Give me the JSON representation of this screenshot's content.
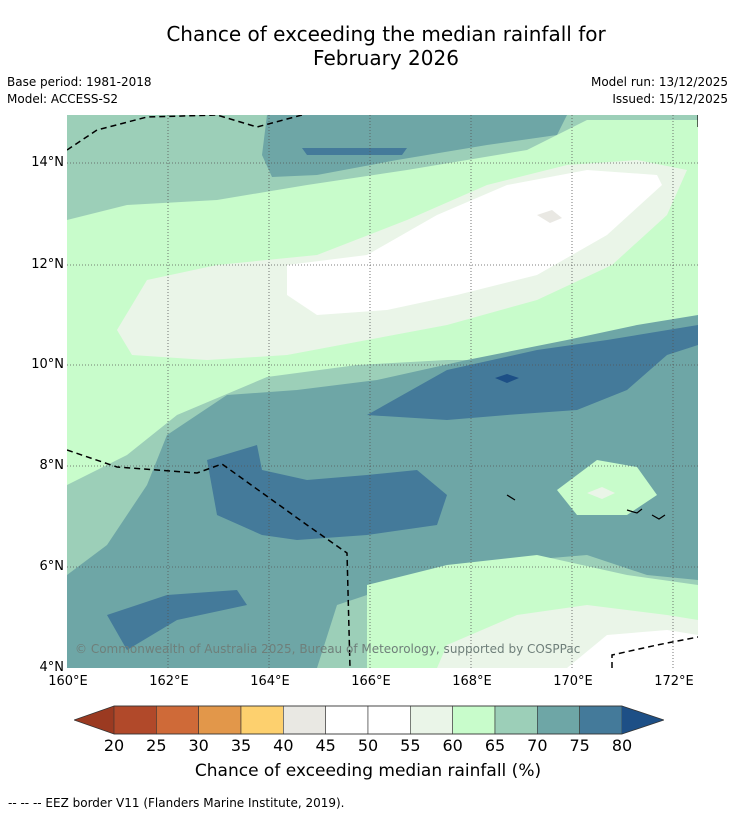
{
  "header": {
    "title_line1": "Chance of exceeding the median rainfall for",
    "title_line2": "February 2026",
    "base_period": "Base period: 1981-2018",
    "model": "Model: ACCESS-S2",
    "model_run": "Model run: 13/12/2025",
    "issued": "Issued: 15/12/2025"
  },
  "map": {
    "copyright": "© Commonwealth of Australia 2025, Bureau of Meteorology, supported by COSPPac",
    "lat_ticks": [
      "14°N",
      "12°N",
      "10°N",
      "8°N",
      "6°N",
      "4°N"
    ],
    "lon_ticks": [
      "160°E",
      "162°E",
      "164°E",
      "166°E",
      "168°E",
      "170°E",
      "172°E"
    ]
  },
  "colorbar": {
    "title": "Chance of exceeding median rainfall (%)",
    "labels": [
      "20",
      "25",
      "30",
      "35",
      "40",
      "45",
      "50",
      "55",
      "60",
      "65",
      "70",
      "75",
      "80"
    ],
    "colors": [
      "#9b3a21",
      "#b1492a",
      "#cf6a38",
      "#e2974a",
      "#fdd06e",
      "#e9e8e3",
      "#ffffff",
      "#ffffff",
      "#eaf5e8",
      "#c8fccb",
      "#9ccfb8",
      "#6ea6a6",
      "#447a9a",
      "#1d4f86"
    ]
  },
  "footnote": "--  --  -- EEZ border V11 (Flanders Marine Institute, 2019)."
}
